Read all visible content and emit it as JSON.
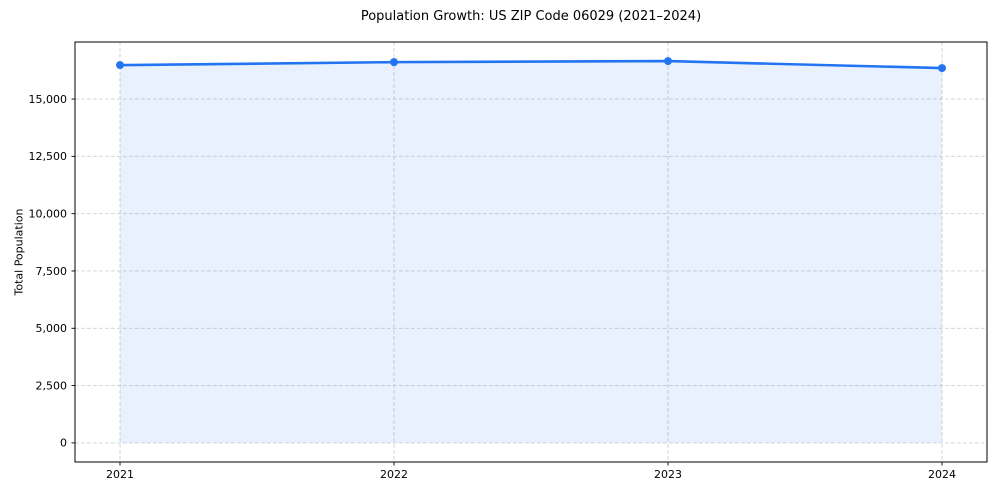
{
  "figure": {
    "background": "#ffffff"
  },
  "chart_data": {
    "type": "line",
    "title": "Population Growth: US ZIP Code 06029 (2021–2024)",
    "ylabel": "Total Population",
    "xlabel": "",
    "categories": [
      "2021",
      "2022",
      "2023",
      "2024"
    ],
    "series": [
      {
        "name": "Total Population",
        "values": [
          16480,
          16610,
          16655,
          16350
        ]
      }
    ],
    "area_fill": true,
    "markers": true,
    "legend": "none",
    "grid": {
      "shown": true,
      "style": "dashed",
      "axes": "both"
    },
    "yticks": [
      0,
      2500,
      5000,
      7500,
      10000,
      12500,
      15000
    ],
    "ytick_labels": [
      "0",
      "2,500",
      "5,000",
      "7,500",
      "10,000",
      "12,500",
      "15,000"
    ],
    "xtick_labels": [
      "2021",
      "2022",
      "2023",
      "2024"
    ],
    "ylim": [
      -833,
      17488
    ],
    "colors": {
      "line": "#2374f2",
      "marker": "#2374f2",
      "area": "rgba(35,116,242,0.10)",
      "grid": "#cfcfcf",
      "axis": "#000000",
      "text": "#000000",
      "background": "#ffffff"
    }
  }
}
